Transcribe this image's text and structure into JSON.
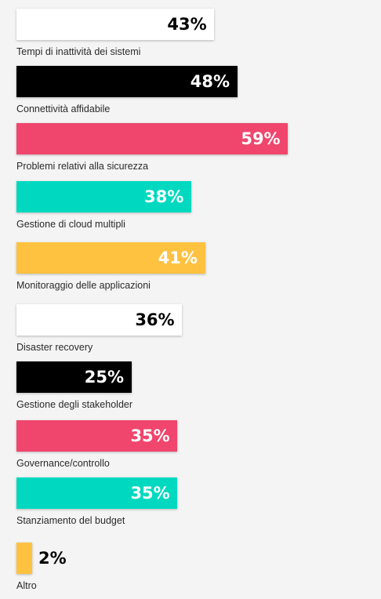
{
  "chart_data": {
    "type": "bar",
    "orientation": "horizontal",
    "title": "",
    "xlabel": "",
    "ylabel": "",
    "unit": "%",
    "xlim": [
      0,
      100
    ],
    "grid": false,
    "legend": "none",
    "categories": [
      "Tempi di inattività dei sistemi",
      "Connettività affidabile",
      "Problemi relativi alla sicurezza",
      "Gestione di cloud multipli",
      "Monitoraggio delle applicazioni",
      "Disaster recovery",
      "Gestione degli stakeholder",
      "Governance/controllo",
      "Stanziamento del budget",
      "Altro"
    ],
    "values": [
      43,
      48,
      59,
      38,
      41,
      36,
      25,
      35,
      35,
      2
    ],
    "value_labels": [
      "43%",
      "48%",
      "59%",
      "38%",
      "41%",
      "36%",
      "25%",
      "35%",
      "35%",
      "2%"
    ],
    "bar_colors": [
      "#ffffff",
      "#000000",
      "#f0456d",
      "#00d9c0",
      "#ffc140",
      "#ffffff",
      "#000000",
      "#f0456d",
      "#00d9c0",
      "#ffc140"
    ],
    "value_colors": [
      "#000000",
      "#ffffff",
      "#ffffff",
      "#ffffff",
      "#ffffff",
      "#000000",
      "#ffffff",
      "#ffffff",
      "#ffffff",
      "#000000"
    ]
  }
}
